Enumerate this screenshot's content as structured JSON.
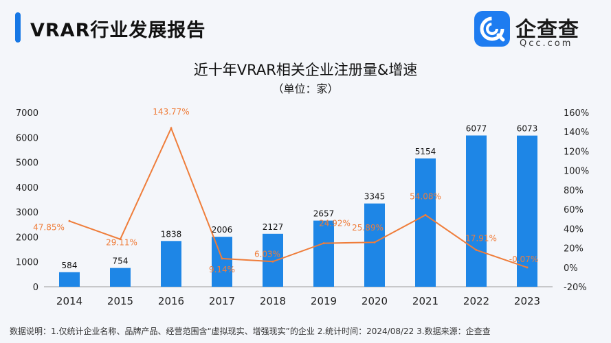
{
  "header": {
    "title": "VRAR行业发展报告",
    "brand_name": "企查查",
    "brand_domain": "Qcc.com"
  },
  "footnote": {
    "text": "数据说明：1.仅统计企业名称、品牌产品、经营范围含“虚拟现实、增强现实”的企业   2.统计时间：2024/08/22   3.数据来源：企查查"
  },
  "colors": {
    "bar": "#1e86e6",
    "line": "#ef7d3a",
    "accent": "#1677e5"
  },
  "chart_data": {
    "type": "bar",
    "title": "近十年VRAR相关企业注册量&增速",
    "subtitle": "（单位：家）",
    "categories": [
      "2014",
      "2015",
      "2016",
      "2017",
      "2018",
      "2019",
      "2020",
      "2021",
      "2022",
      "2023"
    ],
    "series": [
      {
        "type": "bar",
        "axis": "left",
        "values": [
          584,
          754,
          1838,
          2006,
          2127,
          2657,
          3345,
          5154,
          6077,
          6073
        ],
        "labels": [
          "584",
          "754",
          "1838",
          "2006",
          "2127",
          "2657",
          "3345",
          "5154",
          "6077",
          "6073"
        ]
      },
      {
        "type": "line",
        "axis": "right",
        "values": [
          47.85,
          29.11,
          143.77,
          9.14,
          6.03,
          24.92,
          25.89,
          54.08,
          17.91,
          -0.07
        ],
        "labels": [
          "47.85%",
          "29.11%",
          "143.77%",
          "9.14%",
          "6.03%",
          "24.92%",
          "25.89%",
          "54.08%",
          "17.91%",
          "-0.07%"
        ]
      }
    ],
    "y_left": {
      "ylim": [
        0,
        7000
      ],
      "ticks": [
        "0",
        "1000",
        "2000",
        "3000",
        "4000",
        "5000",
        "6000",
        "7000"
      ]
    },
    "y_right": {
      "ylim": [
        -20,
        160
      ],
      "ticks": [
        "-20%",
        "0%",
        "20%",
        "40%",
        "60%",
        "80%",
        "100%",
        "120%",
        "140%",
        "160%"
      ]
    },
    "grid": false
  }
}
